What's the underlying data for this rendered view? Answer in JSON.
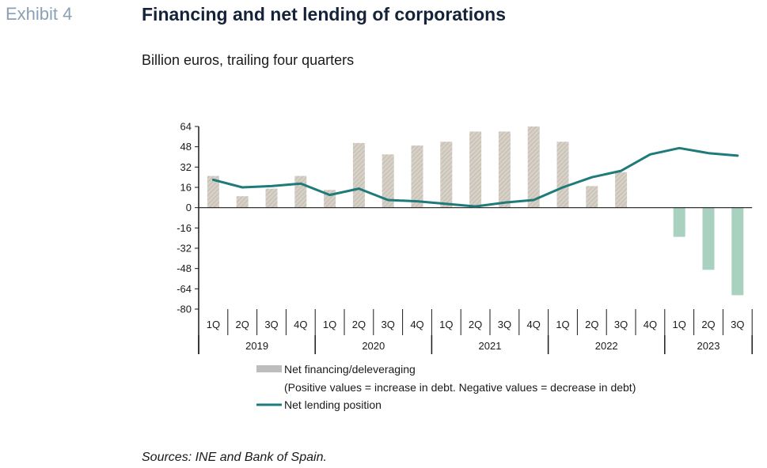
{
  "header": {
    "exhibit": "Exhibit 4",
    "title": "Financing and net lending of corporations",
    "subtitle": "Billion euros, trailing four quarters"
  },
  "footer": {
    "sources": "Sources: INE and Bank of Spain."
  },
  "colors": {
    "positive_bar": "#d6d0c6",
    "positive_hatch": "#bdb6aa",
    "negative_bar": "#a9d1bf",
    "line": "#1f7a7a",
    "axis": "#1a1a1a"
  },
  "chart_data": {
    "type": "bar",
    "quarters": [
      "1Q",
      "2Q",
      "3Q",
      "4Q",
      "1Q",
      "2Q",
      "3Q",
      "4Q",
      "1Q",
      "2Q",
      "3Q",
      "4Q",
      "1Q",
      "2Q",
      "3Q",
      "4Q",
      "1Q",
      "2Q",
      "3Q"
    ],
    "years": [
      {
        "label": "2019",
        "count": 4
      },
      {
        "label": "2020",
        "count": 4
      },
      {
        "label": "2021",
        "count": 4
      },
      {
        "label": "2022",
        "count": 4
      },
      {
        "label": "2023",
        "count": 3
      }
    ],
    "y_ticks": [
      64,
      48,
      32,
      16,
      0,
      -16,
      -32,
      -48,
      -64,
      -80
    ],
    "ylim": [
      -80,
      64
    ],
    "series": [
      {
        "name": "Net financing/deleveraging",
        "type": "bar",
        "values": [
          25,
          9,
          15,
          25,
          14,
          51,
          42,
          49,
          52,
          60,
          60,
          64,
          52,
          17,
          28,
          null,
          -23,
          -49,
          -69
        ]
      },
      {
        "name": "Net lending position",
        "type": "line",
        "values": [
          22,
          16,
          17,
          19,
          10,
          15,
          6,
          5,
          3,
          1,
          4,
          6,
          16,
          24,
          29,
          42,
          47,
          43,
          41
        ]
      }
    ],
    "legend": {
      "bar_label": "Net financing/deleveraging",
      "note": "(Positive values = increase in debt. Negative values = decrease in debt)",
      "line_label": "Net lending position",
      "placement": "bottom"
    },
    "grid": false
  }
}
